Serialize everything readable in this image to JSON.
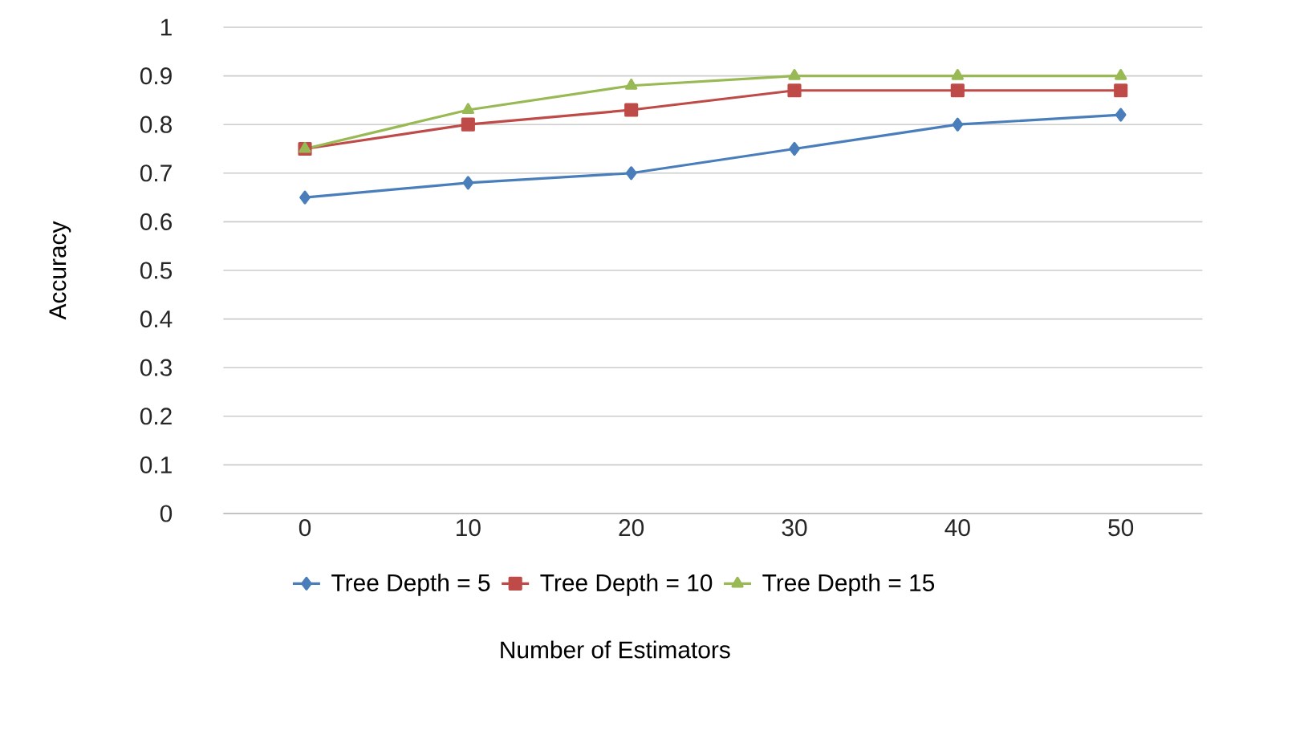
{
  "chart_data": {
    "type": "line",
    "xlabel": "Number of Estimators",
    "ylabel": "Accuracy",
    "categories": [
      "0",
      "10",
      "20",
      "30",
      "40",
      "50"
    ],
    "series": [
      {
        "name": "Tree Depth = 5",
        "color": "#4a7ebb",
        "marker": "diamond",
        "values": [
          0.65,
          0.68,
          0.7,
          0.75,
          0.8,
          0.82
        ]
      },
      {
        "name": "Tree Depth = 10",
        "color": "#be4b48",
        "marker": "square",
        "values": [
          0.75,
          0.8,
          0.83,
          0.87,
          0.87,
          0.87
        ]
      },
      {
        "name": "Tree Depth = 15",
        "color": "#98b954",
        "marker": "triangle",
        "values": [
          0.75,
          0.83,
          0.88,
          0.9,
          0.9,
          0.9
        ]
      }
    ],
    "ylim": [
      0,
      1
    ],
    "yticks": [
      0,
      0.1,
      0.2,
      0.3,
      0.4,
      0.5,
      0.6,
      0.7,
      0.8,
      0.9,
      1
    ],
    "grid": "y",
    "legend": "bottom"
  }
}
